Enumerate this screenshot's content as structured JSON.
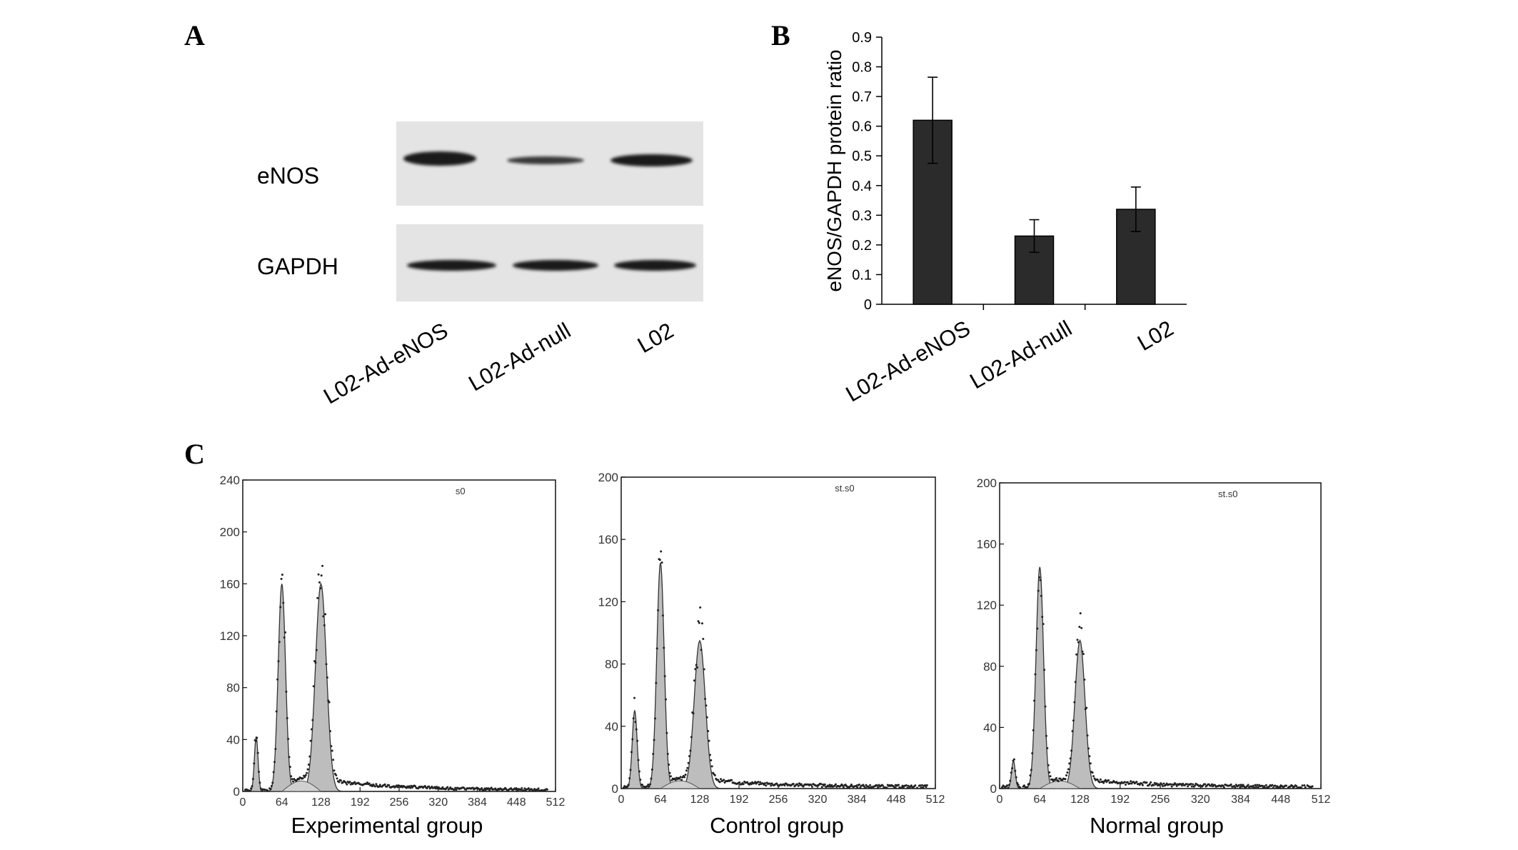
{
  "panels": {
    "a": "A",
    "b": "B",
    "c": "C"
  },
  "blot": {
    "rows": [
      "eNOS",
      "GAPDH"
    ],
    "lanes": [
      "L02-Ad-eNOS",
      "L02-Ad-null",
      "L02"
    ],
    "intensity": {
      "eNOS": [
        0.62,
        0.23,
        0.32
      ],
      "GAPDH": [
        1.0,
        1.0,
        1.0
      ]
    }
  },
  "chart_data": [
    {
      "type": "bar",
      "categories": [
        "L02-Ad-eNOS",
        "L02-Ad-null",
        "L02"
      ],
      "values": [
        0.62,
        0.23,
        0.32
      ],
      "error": [
        0.145,
        0.055,
        0.075
      ],
      "ylabel": "eNOS/GAPDH protein ratio",
      "ylim": [
        0,
        0.9
      ],
      "yticks": [
        "0",
        "0.1",
        "0.2",
        "0.3",
        "0.4",
        "0.5",
        "0.6",
        "0.7",
        "0.8",
        "0.9"
      ],
      "bar_color": "#2b2b2b",
      "grid": false
    },
    {
      "type": "area",
      "title": "Experimental group",
      "corner_text": "s0",
      "xlim": [
        0,
        512
      ],
      "ylim": [
        0,
        240
      ],
      "xticks": [
        "0",
        "64",
        "128",
        "192",
        "256",
        "320",
        "384",
        "448",
        "512"
      ],
      "yticks": [
        "0",
        "40",
        "80",
        "120",
        "160",
        "200",
        "240"
      ],
      "peaks": [
        {
          "x": 22,
          "height": 42,
          "width": 3
        },
        {
          "x": 64,
          "height": 160,
          "width": 6
        },
        {
          "x": 128,
          "height": 160,
          "width": 9
        }
      ],
      "debris_level": 8
    },
    {
      "type": "area",
      "title": "Control group",
      "corner_text": "st.s0",
      "xlim": [
        0,
        512
      ],
      "ylim": [
        0,
        200
      ],
      "xticks": [
        "0",
        "64",
        "128",
        "192",
        "256",
        "320",
        "384",
        "448",
        "512"
      ],
      "yticks": [
        "0",
        "40",
        "80",
        "120",
        "160",
        "200"
      ],
      "peaks": [
        {
          "x": 22,
          "height": 50,
          "width": 4
        },
        {
          "x": 64,
          "height": 145,
          "width": 6
        },
        {
          "x": 128,
          "height": 95,
          "width": 9
        }
      ],
      "debris_level": 5
    },
    {
      "type": "area",
      "title": "Normal group",
      "corner_text": "st.s0",
      "xlim": [
        0,
        512
      ],
      "ylim": [
        0,
        200
      ],
      "xticks": [
        "0",
        "64",
        "128",
        "192",
        "256",
        "320",
        "384",
        "448",
        "512"
      ],
      "yticks": [
        "0",
        "40",
        "80",
        "120",
        "160",
        "200"
      ],
      "peaks": [
        {
          "x": 22,
          "height": 18,
          "width": 3
        },
        {
          "x": 64,
          "height": 145,
          "width": 6
        },
        {
          "x": 128,
          "height": 97,
          "width": 8
        }
      ],
      "debris_level": 5
    }
  ]
}
